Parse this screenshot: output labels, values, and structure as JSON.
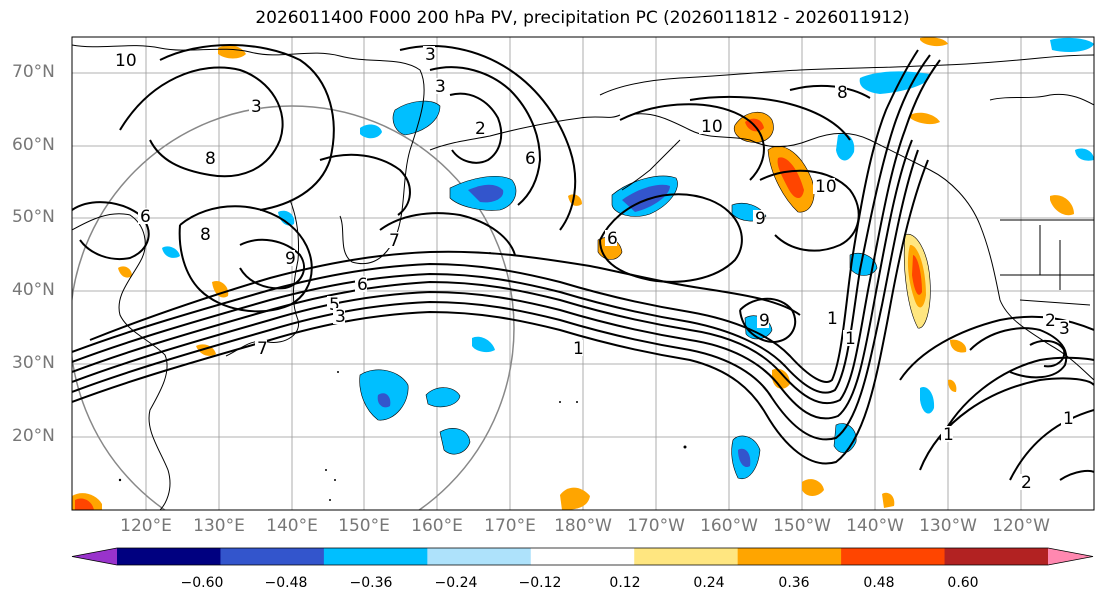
{
  "title": "2026011400 F000 200 hPa PV, precipitation PC (2026011812 - 2026011912)",
  "latitude_labels": [
    "70°N",
    "60°N",
    "50°N",
    "40°N",
    "30°N",
    "20°N"
  ],
  "longitude_labels": [
    "120°E",
    "130°E",
    "140°E",
    "150°E",
    "160°E",
    "170°E",
    "180°W",
    "170°W",
    "160°W",
    "150°W",
    "140°W",
    "130°W",
    "120°W"
  ],
  "contour_labels": [
    "10",
    "3",
    "3",
    "2",
    "3",
    "8",
    "6",
    "6",
    "8",
    "9",
    "7",
    "6",
    "5",
    "3",
    "7",
    "6",
    "10",
    "10",
    "9",
    "8",
    "9",
    "1",
    "1",
    "1",
    "1",
    "1",
    "2",
    "3",
    "2"
  ],
  "colorbar": {
    "ticks": [
      "−0.60",
      "−0.48",
      "−0.36",
      "−0.24",
      "−0.12",
      "0.12",
      "0.24",
      "0.36",
      "0.48",
      "0.60"
    ],
    "colors": [
      "#9933cc",
      "#000080",
      "#3355cc",
      "#00bfff",
      "#aee2fb",
      "#ffffff",
      "#ffe680",
      "#ffa500",
      "#ff4500",
      "#b22222",
      "#ff88b0"
    ]
  },
  "contour_color": "#000000",
  "grid_color": "#999999"
}
